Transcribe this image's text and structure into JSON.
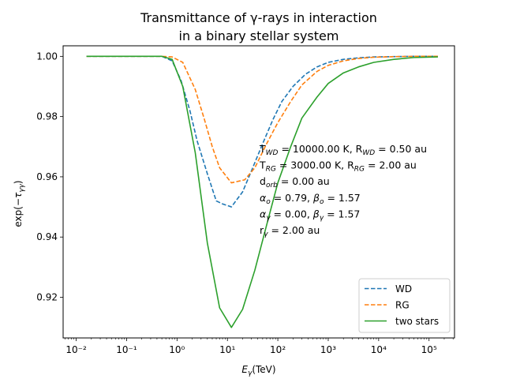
{
  "chart_data": {
    "type": "line",
    "title_line1": "Transmittance of γ-rays in interaction",
    "title_line2": "in a binary stellar system",
    "xlabel": "Eγ(TeV)",
    "ylabel": "exp(−τγγ)",
    "xscale": "log",
    "xlim": [
      0.0055,
      320000
    ],
    "ylim": [
      0.9065,
      1.0035
    ],
    "x_ticks": [
      {
        "value": 0.01,
        "label": "10⁻²"
      },
      {
        "value": 0.1,
        "label": "10⁻¹"
      },
      {
        "value": 1,
        "label": "10⁰"
      },
      {
        "value": 10,
        "label": "10¹"
      },
      {
        "value": 100,
        "label": "10²"
      },
      {
        "value": 1000,
        "label": "10³"
      },
      {
        "value": 10000,
        "label": "10⁴"
      },
      {
        "value": 100000,
        "label": "10⁵"
      }
    ],
    "y_ticks": [
      {
        "value": 0.92,
        "label": "0.92"
      },
      {
        "value": 0.94,
        "label": "0.94"
      },
      {
        "value": 0.96,
        "label": "0.96"
      },
      {
        "value": 0.98,
        "label": "0.98"
      },
      {
        "value": 1.0,
        "label": "1.00"
      }
    ],
    "grid": false,
    "legend_position": "lower right",
    "series": [
      {
        "name": "WD",
        "color": "#1f77b4",
        "dash": "dashed",
        "x": [
          0.016,
          0.03,
          0.06,
          0.12,
          0.25,
          0.5,
          0.8,
          1.2,
          1.8,
          2.5,
          4,
          6,
          8,
          12,
          20,
          30,
          50,
          80,
          120,
          200,
          350,
          600,
          1000,
          2000,
          4000,
          8000,
          20000,
          50000,
          150000
        ],
        "y": [
          1.0,
          1.0,
          1.0,
          1.0,
          1.0,
          1.0,
          0.9985,
          0.992,
          0.982,
          0.972,
          0.961,
          0.952,
          0.951,
          0.95,
          0.955,
          0.962,
          0.971,
          0.979,
          0.985,
          0.99,
          0.994,
          0.9965,
          0.998,
          0.999,
          0.9995,
          0.9998,
          0.9999,
          1.0,
          1.0
        ]
      },
      {
        "name": "RG",
        "color": "#ff7f0e",
        "dash": "dashed",
        "x": [
          0.016,
          0.03,
          0.06,
          0.12,
          0.25,
          0.5,
          0.8,
          1.3,
          2.3,
          3.5,
          5,
          7,
          12,
          22,
          35,
          60,
          100,
          180,
          300,
          600,
          1000,
          2000,
          4000,
          8000,
          20000,
          50000,
          150000
        ],
        "y": [
          1.0,
          1.0,
          1.0,
          1.0,
          1.0,
          1.0,
          0.9998,
          0.998,
          0.989,
          0.979,
          0.97,
          0.963,
          0.958,
          0.959,
          0.963,
          0.971,
          0.978,
          0.985,
          0.9905,
          0.995,
          0.997,
          0.9985,
          0.9993,
          0.9997,
          0.9999,
          1.0,
          1.0
        ]
      },
      {
        "name": "two stars",
        "color": "#2ca02c",
        "dash": "solid",
        "x": [
          0.016,
          0.03,
          0.06,
          0.12,
          0.25,
          0.5,
          0.8,
          1.3,
          2.3,
          4,
          7,
          12,
          20,
          35,
          60,
          100,
          180,
          300,
          600,
          1000,
          2000,
          4000,
          8000,
          20000,
          50000,
          150000
        ],
        "y": [
          1.0,
          1.0,
          1.0,
          1.0,
          1.0,
          1.0,
          0.999,
          0.99,
          0.968,
          0.938,
          0.9165,
          0.91,
          0.916,
          0.929,
          0.944,
          0.958,
          0.97,
          0.9795,
          0.9865,
          0.991,
          0.9945,
          0.9965,
          0.998,
          0.999,
          0.9996,
          0.9998
        ]
      }
    ],
    "annotation_lines": [
      {
        "parts": [
          [
            "T",
            "n"
          ],
          [
            "WD",
            "sub"
          ],
          [
            " = 10000.00 K, R",
            "n"
          ],
          [
            "WD",
            "sub"
          ],
          [
            " = 0.50 au",
            "n"
          ]
        ]
      },
      {
        "parts": [
          [
            "T",
            "n"
          ],
          [
            "RG",
            "sub"
          ],
          [
            " = 3000.00 K, R",
            "n"
          ],
          [
            "RG",
            "sub"
          ],
          [
            " =  2.00 au",
            "n"
          ]
        ]
      },
      {
        "parts": [
          [
            "d",
            "n"
          ],
          [
            "orb",
            "sub"
          ],
          [
            " = 0.00 au",
            "n"
          ]
        ]
      },
      {
        "parts": [
          [
            "α",
            "i"
          ],
          [
            "o",
            "sub"
          ],
          [
            " = 0.79, ",
            "n"
          ],
          [
            "β",
            "i"
          ],
          [
            "o",
            "sub"
          ],
          [
            " = 1.57",
            "n"
          ]
        ]
      },
      {
        "parts": [
          [
            "α",
            "i"
          ],
          [
            "γ",
            "sub"
          ],
          [
            " = 0.00, ",
            "n"
          ],
          [
            "β",
            "i"
          ],
          [
            "γ",
            "sub"
          ],
          [
            " = 1.57",
            "n"
          ]
        ]
      },
      {
        "parts": [
          [
            "r",
            "n"
          ],
          [
            "γ",
            "sub"
          ],
          [
            " = 2.00 au",
            "n"
          ]
        ]
      }
    ]
  }
}
